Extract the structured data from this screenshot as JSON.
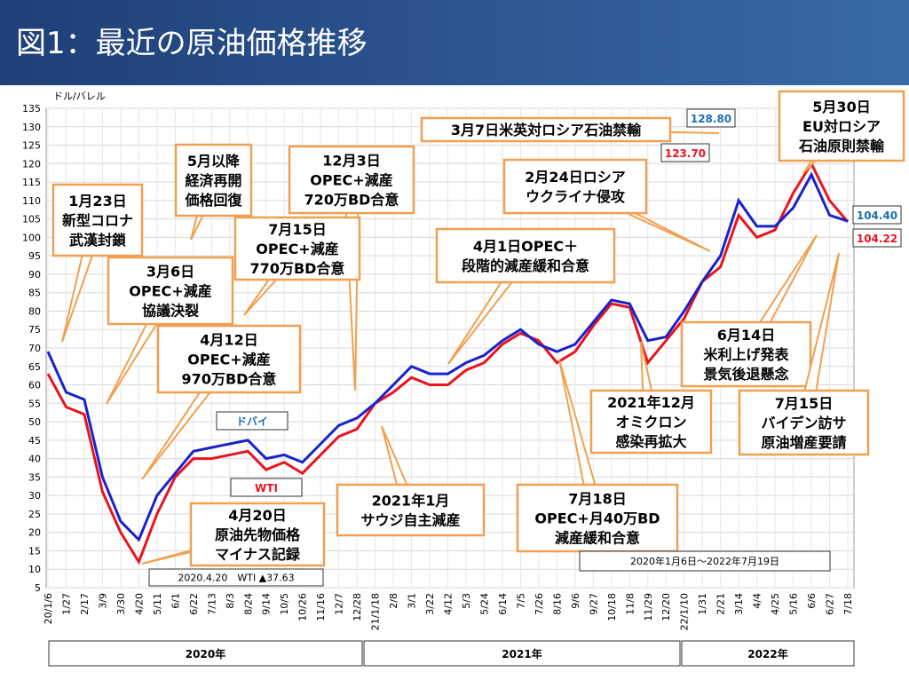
{
  "header": {
    "title": "図1：最近の原油価格推移"
  },
  "chart_data": {
    "type": "line",
    "y_unit": "ドル/バレル",
    "categories": [
      "20/1/6",
      "1/27",
      "2/17",
      "3/9",
      "3/30",
      "4/20",
      "5/11",
      "6/1",
      "6/22",
      "7/13",
      "8/3",
      "8/24",
      "9/14",
      "10/5",
      "10/26",
      "11/16",
      "12/7",
      "12/28",
      "21/1/18",
      "2/8",
      "3/1",
      "3/22",
      "4/12",
      "5/3",
      "5/24",
      "6/14",
      "7/5",
      "7/26",
      "8/16",
      "9/6",
      "9/27",
      "10/18",
      "11/8",
      "11/29",
      "12/20",
      "22/1/10",
      "1/31",
      "2/21",
      "3/14",
      "4/4",
      "4/25",
      "5/16",
      "6/6",
      "6/27",
      "7/18"
    ],
    "series": [
      {
        "name": "ドバイ",
        "color": "#1a22c8",
        "values": [
          69,
          58,
          56,
          35,
          23,
          18,
          30,
          36,
          42,
          43,
          44,
          45,
          40,
          41,
          39,
          44,
          49,
          51,
          55,
          60,
          65,
          63,
          63,
          66,
          68,
          72,
          75,
          71,
          69,
          71,
          77,
          83,
          82,
          72,
          73,
          80,
          88,
          95,
          110,
          103,
          103,
          108,
          117,
          106,
          104.4
        ]
      },
      {
        "name": "WTI",
        "color": "#e8141e",
        "values": [
          63,
          54,
          52,
          31,
          20,
          12,
          25,
          35,
          40,
          40,
          41,
          42,
          37,
          39,
          36,
          41,
          46,
          48,
          55,
          58,
          62,
          60,
          60,
          64,
          66,
          71,
          74,
          72,
          66,
          69,
          76,
          82,
          81,
          66,
          72,
          78,
          88,
          92,
          106,
          100,
          102,
          112,
          120,
          110,
          104.22
        ]
      }
    ],
    "ylim": [
      5,
      135
    ],
    "yticks": [
      5,
      10,
      15,
      20,
      25,
      30,
      35,
      40,
      45,
      50,
      55,
      60,
      65,
      70,
      75,
      80,
      85,
      90,
      95,
      100,
      105,
      110,
      115,
      120,
      125,
      130,
      135
    ],
    "grid": true,
    "price_labels": [
      {
        "value": 128.8,
        "label": "128.80",
        "color": "#1a6fb5"
      },
      {
        "value": 123.7,
        "label": "123.70",
        "color": "#e8141e"
      },
      {
        "value": 104.4,
        "label": "104.40",
        "color": "#1a6fb5"
      },
      {
        "value": 104.22,
        "label": "104.22",
        "color": "#e8141e"
      }
    ],
    "annotations": [
      [
        "1月23日",
        "新型コロナ",
        "武漢封鎖"
      ],
      [
        "5月以降",
        "経済再開",
        "価格回復"
      ],
      [
        "12月3日",
        "OPEC+減産",
        "720万BD合意"
      ],
      [
        "3月7日米英対ロシア石油禁輸"
      ],
      [
        "5月30日",
        "EU対ロシア",
        "石油原則禁輸"
      ],
      [
        "7月15日",
        "OPEC+減産",
        "770万BD合意"
      ],
      [
        "2月24日ロシア",
        "ウクライナ侵攻"
      ],
      [
        "3月6日",
        "OPEC+減産",
        "協議決裂"
      ],
      [
        "4月1日OPEC＋",
        "段階的減産緩和合意"
      ],
      [
        "4月12日",
        "OPEC+減産",
        "970万BD合意"
      ],
      [
        "6月14日",
        "米利上げ発表",
        "景気後退懸念"
      ],
      [
        "2021年12月",
        "オミクロン",
        "感染再拡大"
      ],
      [
        "7月15日",
        "バイデン訪サ",
        "原油増産要請"
      ],
      [
        "2021年1月",
        "サウジ自主減産"
      ],
      [
        "7月18日",
        "OPEC+月40万BD",
        "減産緩和合意"
      ],
      [
        "4月20日",
        "原油先物価格",
        "マイナス記録"
      ]
    ],
    "notes": [
      "2020.4.20　WTI ▲37.63",
      "2020年1月6日～2022年7月19日"
    ],
    "year_bands": [
      "2020年",
      "2021年",
      "2022年"
    ]
  }
}
